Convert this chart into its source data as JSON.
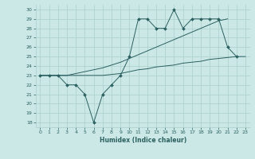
{
  "x_main": [
    0,
    1,
    2,
    3,
    4,
    5,
    6,
    7,
    8,
    9,
    10,
    11,
    12,
    13,
    14,
    15,
    16,
    17,
    18,
    19,
    20,
    21,
    22
  ],
  "y_main": [
    23,
    23,
    23,
    22,
    22,
    21,
    18,
    21,
    22,
    23,
    25,
    29,
    29,
    28,
    28,
    30,
    28,
    29,
    29,
    29,
    29,
    26,
    25
  ],
  "x_upper": [
    0,
    1,
    2,
    3,
    4,
    5,
    6,
    7,
    8,
    9,
    10,
    11,
    12,
    13,
    14,
    15,
    16,
    17,
    18,
    19,
    20,
    21
  ],
  "y_upper": [
    23,
    23,
    23,
    23,
    23.2,
    23.4,
    23.6,
    23.8,
    24.1,
    24.4,
    24.8,
    25.2,
    25.6,
    26.0,
    26.4,
    26.8,
    27.2,
    27.6,
    28.0,
    28.4,
    28.8,
    29.0
  ],
  "x_lower": [
    0,
    1,
    2,
    3,
    4,
    5,
    6,
    7,
    8,
    9,
    10,
    11,
    12,
    13,
    14,
    15,
    16,
    17,
    18,
    19,
    20,
    21,
    22,
    23
  ],
  "y_lower": [
    23,
    23,
    23,
    23,
    23,
    23,
    23,
    23,
    23.1,
    23.2,
    23.4,
    23.6,
    23.7,
    23.9,
    24.0,
    24.1,
    24.3,
    24.4,
    24.5,
    24.7,
    24.8,
    24.9,
    25.0,
    25.0
  ],
  "xlim": [
    -0.5,
    23.5
  ],
  "ylim": [
    17.5,
    30.5
  ],
  "yticks": [
    18,
    19,
    20,
    21,
    22,
    23,
    24,
    25,
    26,
    27,
    28,
    29,
    30
  ],
  "xticks": [
    0,
    1,
    2,
    3,
    4,
    5,
    6,
    7,
    8,
    9,
    10,
    11,
    12,
    13,
    14,
    15,
    16,
    17,
    18,
    19,
    20,
    21,
    22,
    23
  ],
  "xlabel": "Humidex (Indice chaleur)",
  "line_color": "#2a6060",
  "bg_color": "#cce8e6",
  "grid_color": "#aacfcc"
}
